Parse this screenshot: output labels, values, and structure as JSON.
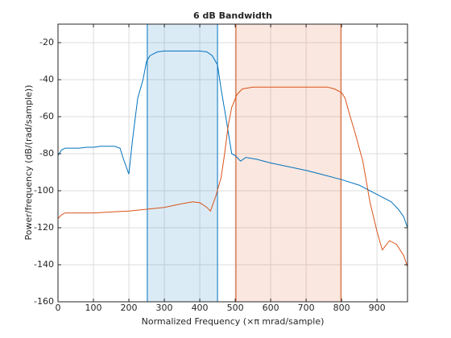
{
  "chart_data": {
    "type": "line",
    "title": "6 dB Bandwidth",
    "xlabel": "Normalized Frequency  (×π mrad/sample)",
    "ylabel": "Power/frequency (dB/(rad/sample))",
    "xlim": [
      0,
      986
    ],
    "ylim": [
      -160,
      -10
    ],
    "xticks": [
      0,
      100,
      200,
      300,
      400,
      500,
      600,
      700,
      800,
      900
    ],
    "yticks": [
      -160,
      -140,
      -120,
      -100,
      -80,
      -60,
      -40,
      -20
    ],
    "grid": true,
    "bands": [
      {
        "x": [
          252,
          450
        ],
        "color": "#0072bd"
      },
      {
        "x": [
          502,
          798
        ],
        "color": "#d95319"
      }
    ],
    "series": [
      {
        "color": "#0072bd",
        "x": [
          0,
          10,
          20,
          40,
          60,
          80,
          100,
          120,
          140,
          160,
          175,
          185,
          200,
          210,
          225,
          240,
          250,
          260,
          280,
          300,
          350,
          400,
          420,
          435,
          450,
          460,
          475,
          490,
          500,
          515,
          530,
          560,
          600,
          650,
          700,
          750,
          800,
          850,
          880,
          900,
          940,
          960,
          975,
          986
        ],
        "values": [
          -81,
          -78,
          -77,
          -77,
          -77,
          -76.5,
          -76.5,
          -76,
          -76,
          -76,
          -77,
          -83,
          -91,
          -73,
          -50,
          -40,
          -30,
          -27,
          -25,
          -24.5,
          -24.5,
          -24.5,
          -25,
          -27,
          -32,
          -45,
          -62,
          -80,
          -81,
          -84,
          -82,
          -83,
          -85,
          -87,
          -89,
          -91.5,
          -94,
          -97,
          -100,
          -102,
          -106,
          -110,
          -114,
          -120
        ]
      },
      {
        "color": "#d95319",
        "x": [
          0,
          10,
          20,
          40,
          100,
          150,
          200,
          250,
          300,
          350,
          380,
          400,
          420,
          430,
          445,
          460,
          470,
          480,
          490,
          505,
          520,
          550,
          600,
          700,
          760,
          780,
          800,
          810,
          820,
          840,
          860,
          880,
          900,
          915,
          935,
          955,
          975,
          986
        ],
        "values": [
          -115,
          -113,
          -112,
          -112,
          -112,
          -111.5,
          -111,
          -110,
          -109,
          -107,
          -106,
          -106.5,
          -109,
          -111,
          -103,
          -93,
          -80,
          -65,
          -55,
          -48,
          -45,
          -44,
          -44,
          -44,
          -44,
          -45,
          -47,
          -50,
          -57,
          -70,
          -84,
          -106,
          -122,
          -132,
          -127,
          -129,
          -135,
          -141
        ]
      }
    ]
  }
}
